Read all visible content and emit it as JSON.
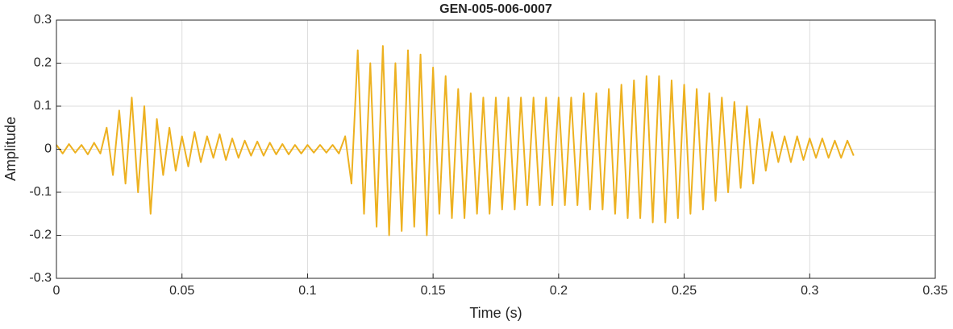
{
  "chart_data": {
    "type": "line",
    "title": "GEN-005-006-0007",
    "x_label": "Time (s)",
    "y_label": "Amplitude",
    "x": [
      0,
      0.0025,
      0.005,
      0.0075,
      0.01,
      0.0125,
      0.015,
      0.0175,
      0.02,
      0.0225,
      0.025,
      0.0275,
      0.03,
      0.0325,
      0.035,
      0.0375,
      0.04,
      0.0425,
      0.045,
      0.0475,
      0.05,
      0.0525,
      0.055,
      0.0575,
      0.06,
      0.0625,
      0.065,
      0.0675,
      0.07,
      0.0725,
      0.075,
      0.0775,
      0.08,
      0.0825,
      0.085,
      0.0875,
      0.09,
      0.0925,
      0.095,
      0.0975,
      0.1,
      0.1025,
      0.105,
      0.1075,
      0.11,
      0.1125,
      0.115,
      0.1175,
      0.12,
      0.1225,
      0.125,
      0.1275,
      0.13,
      0.1325,
      0.135,
      0.1375,
      0.14,
      0.1425,
      0.145,
      0.1475,
      0.15,
      0.1525,
      0.155,
      0.1575,
      0.16,
      0.1625,
      0.165,
      0.1675,
      0.17,
      0.1725,
      0.175,
      0.1775,
      0.18,
      0.1825,
      0.185,
      0.1875,
      0.19,
      0.1925,
      0.195,
      0.1975,
      0.2,
      0.2025,
      0.205,
      0.2075,
      0.21,
      0.2125,
      0.215,
      0.2175,
      0.22,
      0.2225,
      0.225,
      0.2275,
      0.23,
      0.2325,
      0.235,
      0.2375,
      0.24,
      0.2425,
      0.245,
      0.2475,
      0.25,
      0.2525,
      0.255,
      0.2575,
      0.26,
      0.2625,
      0.265,
      0.2675,
      0.27,
      0.2725,
      0.275,
      0.2775,
      0.28,
      0.2825,
      0.285,
      0.2875,
      0.29,
      0.2925,
      0.295,
      0.2975,
      0.3,
      0.3025,
      0.305,
      0.3075,
      0.31,
      0.3125,
      0.315,
      0.3175
    ],
    "series": [
      {
        "color": "#EDB120",
        "values": [
          0.01,
          -0.01,
          0.012,
          -0.008,
          0.01,
          -0.012,
          0.015,
          -0.01,
          0.05,
          -0.06,
          0.09,
          -0.08,
          0.12,
          -0.1,
          0.1,
          -0.15,
          0.07,
          -0.06,
          0.05,
          -0.05,
          0.03,
          -0.04,
          0.04,
          -0.03,
          0.03,
          -0.02,
          0.035,
          -0.025,
          0.025,
          -0.02,
          0.02,
          -0.015,
          0.018,
          -0.015,
          0.015,
          -0.012,
          0.012,
          -0.012,
          0.01,
          -0.01,
          0.01,
          -0.008,
          0.01,
          -0.008,
          0.01,
          -0.01,
          0.03,
          -0.08,
          0.23,
          -0.15,
          0.2,
          -0.18,
          0.24,
          -0.2,
          0.2,
          -0.19,
          0.23,
          -0.18,
          0.22,
          -0.2,
          0.19,
          -0.15,
          0.17,
          -0.16,
          0.14,
          -0.16,
          0.13,
          -0.15,
          0.12,
          -0.15,
          0.12,
          -0.14,
          0.12,
          -0.14,
          0.12,
          -0.13,
          0.12,
          -0.13,
          0.12,
          -0.13,
          0.12,
          -0.13,
          0.12,
          -0.13,
          0.13,
          -0.14,
          0.13,
          -0.14,
          0.14,
          -0.15,
          0.15,
          -0.16,
          0.16,
          -0.16,
          0.17,
          -0.17,
          0.17,
          -0.17,
          0.16,
          -0.16,
          0.15,
          -0.15,
          0.14,
          -0.14,
          0.13,
          -0.12,
          0.12,
          -0.1,
          0.11,
          -0.09,
          0.1,
          -0.08,
          0.07,
          -0.05,
          0.04,
          -0.03,
          0.03,
          -0.03,
          0.03,
          -0.025,
          0.025,
          -0.02,
          0.025,
          -0.02,
          0.02,
          -0.02,
          0.02,
          -0.015
        ]
      }
    ],
    "xlim": [
      0,
      0.35
    ],
    "xticks": [
      0,
      0.05,
      0.1,
      0.15,
      0.2,
      0.25,
      0.3,
      0.35
    ],
    "ylim": [
      -0.3,
      0.3
    ],
    "yticks": [
      -0.3,
      -0.2,
      -0.1,
      0,
      0.1,
      0.2,
      0.3
    ],
    "grid": true
  }
}
